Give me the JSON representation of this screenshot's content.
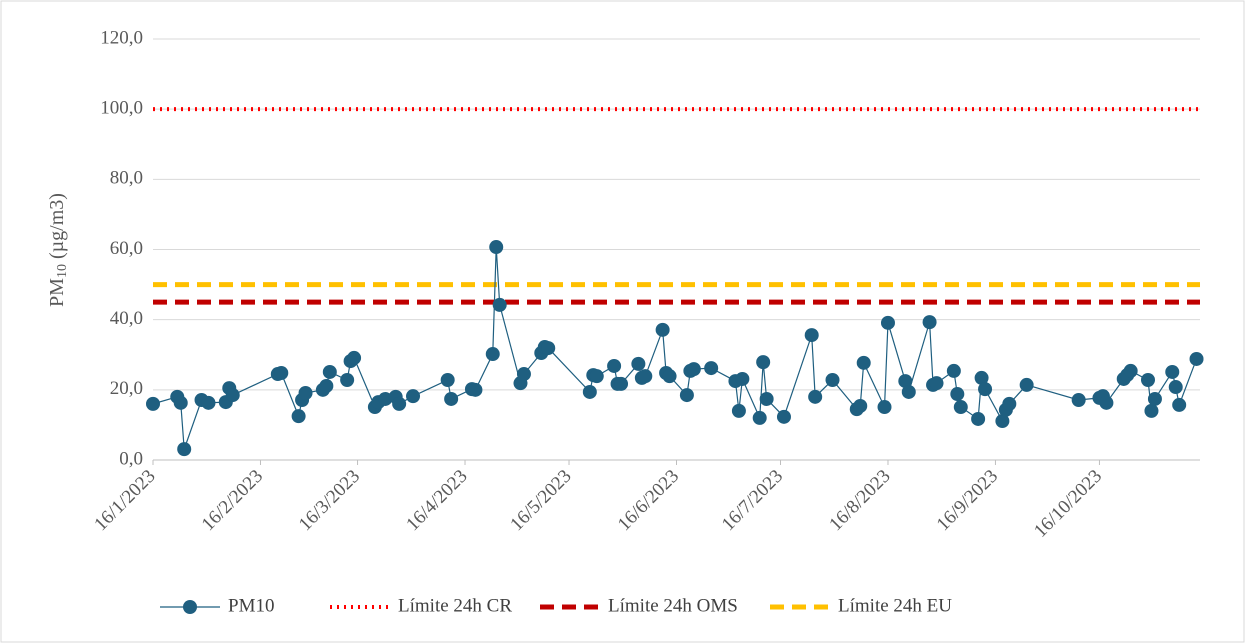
{
  "chart_data": {
    "type": "line",
    "y_label": {
      "main": "PM",
      "sub": "10",
      "unit": " (µg/m3)"
    },
    "x": [
      "2023-01-16",
      "2023-01-23",
      "2023-01-24",
      "2023-01-25",
      "2023-01-30",
      "2023-02-01",
      "2023-02-06",
      "2023-02-07",
      "2023-02-08",
      "2023-02-21",
      "2023-02-22",
      "2023-02-27",
      "2023-02-28",
      "2023-03-01",
      "2023-03-06",
      "2023-03-07",
      "2023-03-08",
      "2023-03-13",
      "2023-03-14",
      "2023-03-15",
      "2023-03-21",
      "2023-03-22",
      "2023-03-24",
      "2023-03-27",
      "2023-03-28",
      "2023-04-01",
      "2023-04-11",
      "2023-04-12",
      "2023-04-18",
      "2023-04-19",
      "2023-04-24",
      "2023-04-25",
      "2023-04-26",
      "2023-05-02",
      "2023-05-03",
      "2023-05-08",
      "2023-05-09",
      "2023-05-10",
      "2023-05-22",
      "2023-05-23",
      "2023-05-24",
      "2023-05-29",
      "2023-05-30",
      "2023-05-31",
      "2023-06-05",
      "2023-06-06",
      "2023-06-07",
      "2023-06-12",
      "2023-06-13",
      "2023-06-14",
      "2023-06-19",
      "2023-06-20",
      "2023-06-21",
      "2023-06-26",
      "2023-07-03",
      "2023-07-04",
      "2023-07-05",
      "2023-07-10",
      "2023-07-11",
      "2023-07-12",
      "2023-07-17",
      "2023-07-25",
      "2023-07-26",
      "2023-07-31",
      "2023-08-07",
      "2023-08-08",
      "2023-08-09",
      "2023-08-15",
      "2023-08-16",
      "2023-08-21",
      "2023-08-22",
      "2023-08-28",
      "2023-08-29",
      "2023-08-30",
      "2023-09-04",
      "2023-09-05",
      "2023-09-06",
      "2023-09-11",
      "2023-09-12",
      "2023-09-13",
      "2023-09-18",
      "2023-09-19",
      "2023-09-20",
      "2023-09-25",
      "2023-10-10",
      "2023-10-16",
      "2023-10-17",
      "2023-10-18",
      "2023-10-23",
      "2023-10-24",
      "2023-10-25",
      "2023-10-30",
      "2023-10-31",
      "2023-11-01",
      "2023-11-06",
      "2023-11-07",
      "2023-11-08",
      "2023-11-13"
    ],
    "series": [
      {
        "name": "PM10",
        "color": "#1f5f80",
        "values": [
          16.0,
          18.0,
          16.3,
          3.1,
          17.1,
          16.3,
          16.5,
          20.5,
          18.5,
          24.5,
          24.8,
          12.5,
          17.1,
          19.1,
          20.0,
          21.1,
          25.1,
          22.8,
          28.2,
          29.1,
          15.1,
          16.5,
          17.4,
          18.0,
          16.0,
          18.2,
          22.8,
          17.4,
          20.2,
          20.0,
          30.2,
          60.7,
          44.2,
          21.9,
          24.5,
          30.5,
          32.2,
          31.9,
          19.4,
          24.2,
          23.9,
          26.8,
          21.7,
          21.7,
          27.4,
          23.4,
          23.9,
          37.1,
          24.8,
          23.9,
          18.5,
          25.4,
          25.9,
          26.2,
          22.5,
          14.0,
          23.1,
          12.0,
          27.9,
          17.4,
          12.3,
          35.6,
          18.0,
          22.8,
          14.5,
          15.4,
          27.7,
          15.1,
          39.1,
          22.5,
          19.4,
          39.3,
          21.4,
          21.9,
          25.4,
          18.8,
          15.1,
          11.7,
          23.4,
          20.2,
          11.1,
          14.3,
          16.0,
          21.4,
          17.1,
          17.7,
          18.2,
          16.3,
          23.1,
          24.2,
          25.4,
          22.8,
          14.0,
          17.4,
          25.1,
          20.8,
          15.7,
          28.8
        ]
      }
    ],
    "reference_lines": [
      {
        "name": "Límite 24h CR",
        "value": 100,
        "color": "#ff0000",
        "style": "dotted"
      },
      {
        "name": "Límite 24h OMS",
        "value": 45,
        "color": "#c00000",
        "style": "dashed"
      },
      {
        "name": "Límite 24h EU",
        "value": 50,
        "color": "#ffc000",
        "style": "dashed"
      }
    ],
    "xlim": [
      "2023-01-16",
      "2023-11-14"
    ],
    "xticks": [
      {
        "value": "2023-01-16",
        "label": "16/1/2023"
      },
      {
        "value": "2023-02-16",
        "label": "16/2/2023"
      },
      {
        "value": "2023-03-16",
        "label": "16/3/2023"
      },
      {
        "value": "2023-04-16",
        "label": "16/4/2023"
      },
      {
        "value": "2023-05-16",
        "label": "16/5/2023"
      },
      {
        "value": "2023-06-16",
        "label": "16/6/2023"
      },
      {
        "value": "2023-07-16",
        "label": "16/7/2023"
      },
      {
        "value": "2023-08-16",
        "label": "16/8/2023"
      },
      {
        "value": "2023-09-16",
        "label": "16/9/2023"
      },
      {
        "value": "2023-10-16",
        "label": "16/10/2023"
      }
    ],
    "ylim": [
      0,
      120
    ],
    "yticks": [
      {
        "value": 0,
        "label": "0,0"
      },
      {
        "value": 20,
        "label": "20,0"
      },
      {
        "value": 40,
        "label": "40,0"
      },
      {
        "value": 60,
        "label": "60,0"
      },
      {
        "value": 80,
        "label": "80,0"
      },
      {
        "value": 100,
        "label": "100,0"
      },
      {
        "value": 120,
        "label": "120,0"
      }
    ],
    "grid": true,
    "legend": "bottom"
  }
}
